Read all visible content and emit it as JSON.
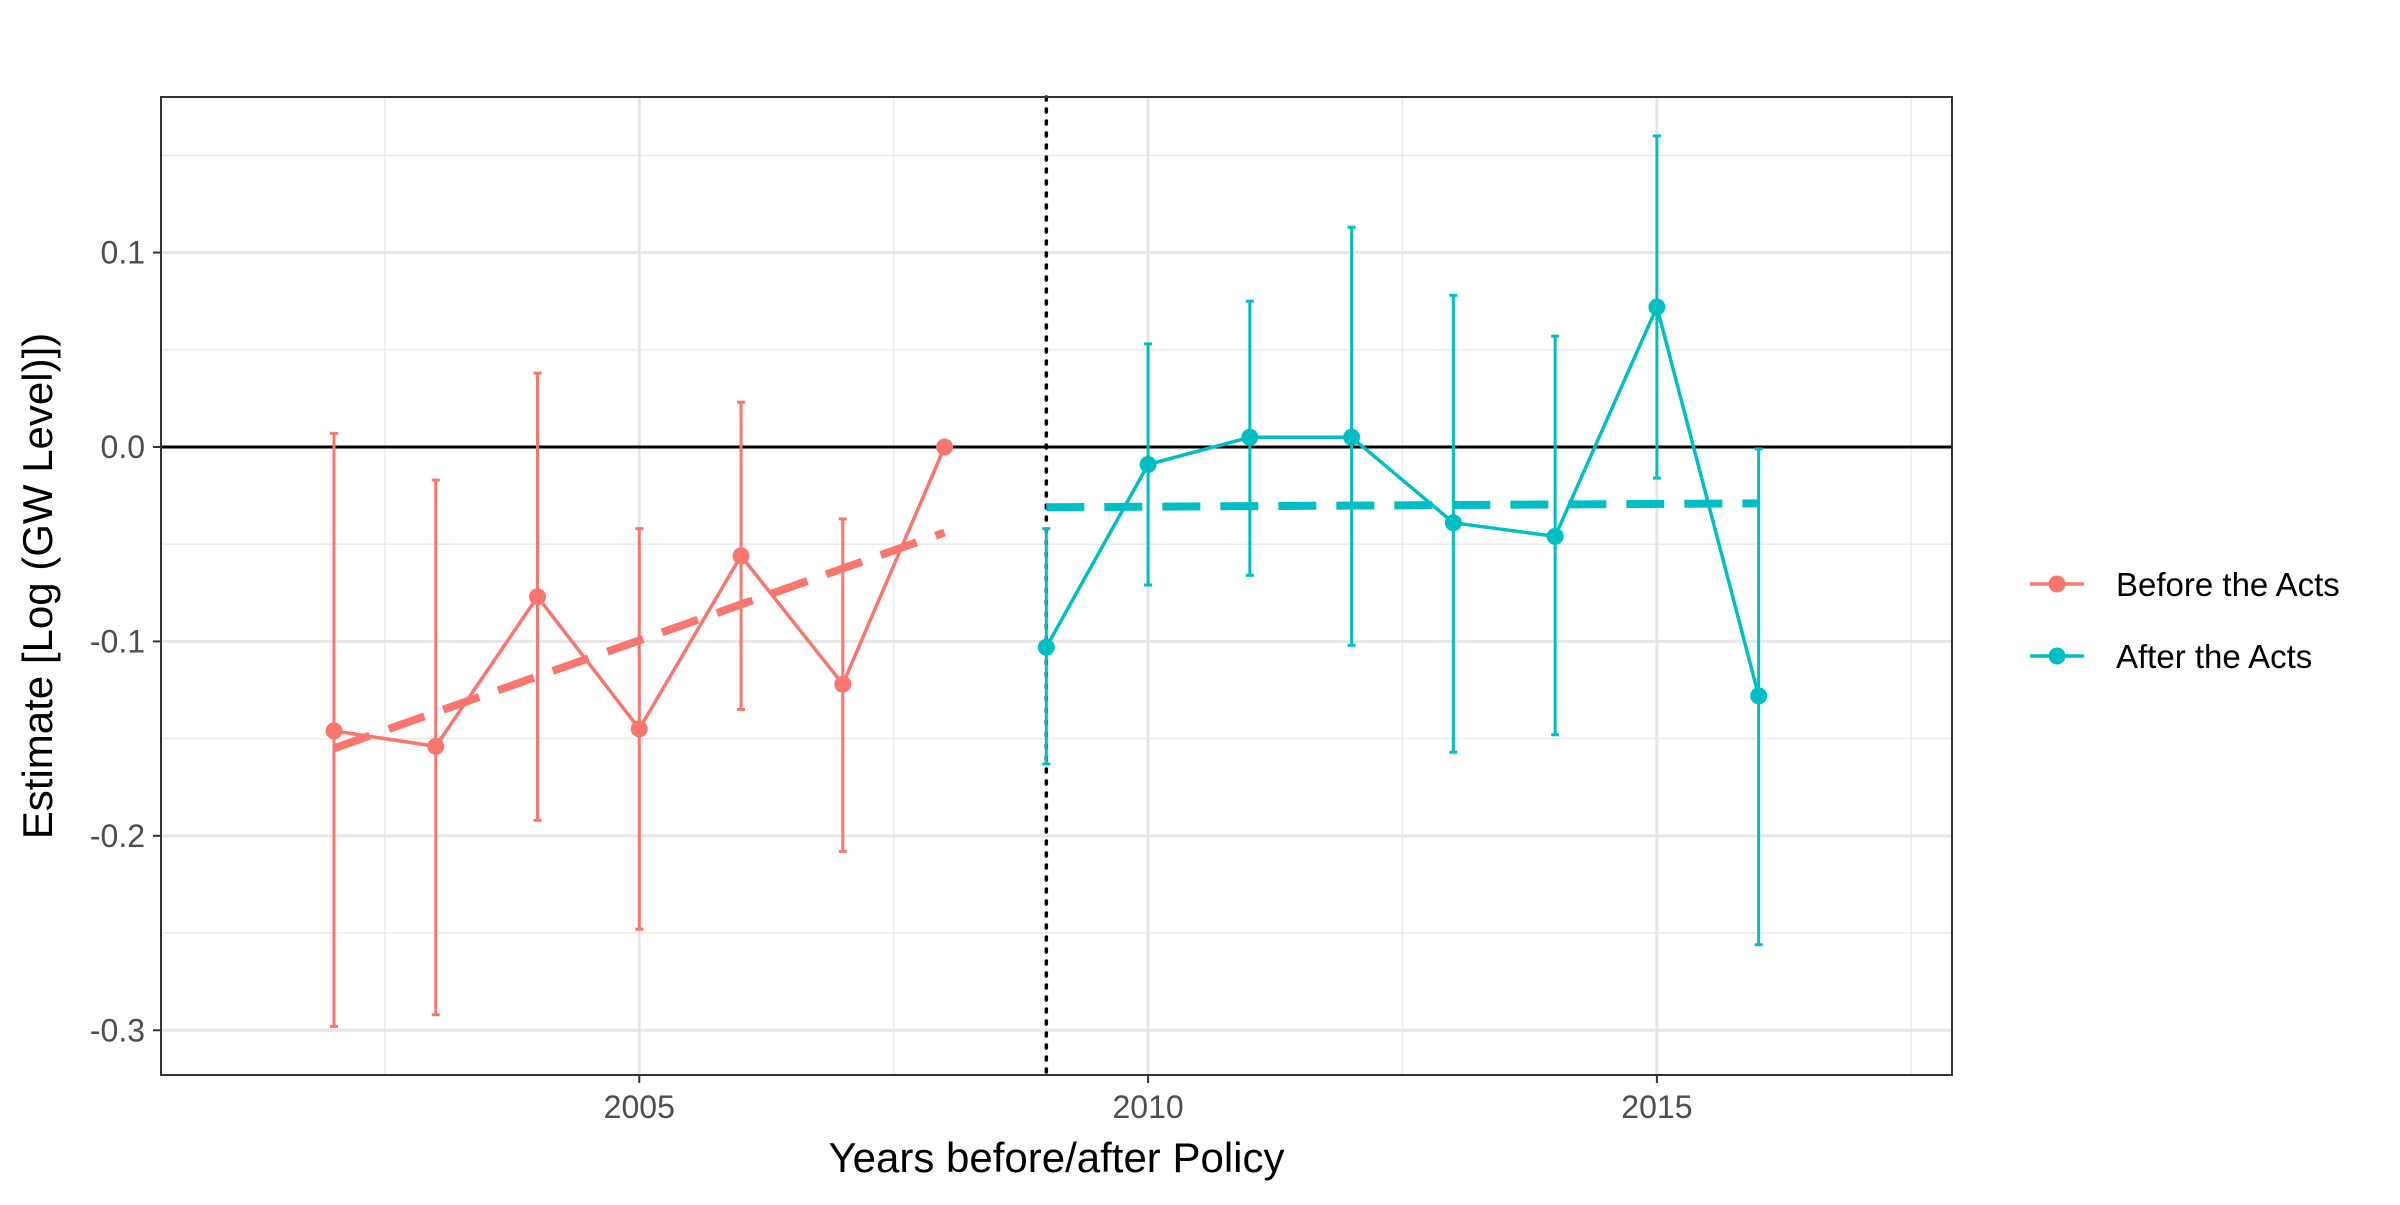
{
  "chart_data": {
    "type": "line",
    "title": "",
    "xlabel": "Years before/after Policy",
    "ylabel": "Estimate [Log (GW Level)])",
    "xlim": [
      2000.3,
      2017.9
    ],
    "ylim": [
      -0.323,
      0.18
    ],
    "x_ticks": [
      2005,
      2010,
      2015
    ],
    "x_tick_labels": [
      "2005",
      "2010",
      "2015"
    ],
    "y_ticks": [
      0.1,
      0.0,
      -0.1,
      -0.2,
      -0.3
    ],
    "y_tick_labels": [
      "0.1",
      "0.0",
      "-0.1",
      "-0.2",
      "-0.3"
    ],
    "x_minor_gridlines": [
      2002.5,
      2007.5,
      2012.5,
      2017.5
    ],
    "y_minor_gridlines": [
      0.15,
      0.05,
      -0.05,
      -0.15,
      -0.25
    ],
    "grid": true,
    "legend_position": "right",
    "reference_lines": {
      "horizontal_zero": 0.0,
      "policy_year_dotted": 2009
    },
    "series": [
      {
        "name": "Before the Acts",
        "color": "#F8766D",
        "points": [
          {
            "x": 2002,
            "y": -0.146,
            "lo": -0.298,
            "hi": 0.007
          },
          {
            "x": 2003,
            "y": -0.154,
            "lo": -0.292,
            "hi": -0.017
          },
          {
            "x": 2004,
            "y": -0.077,
            "lo": -0.192,
            "hi": 0.038
          },
          {
            "x": 2005,
            "y": -0.145,
            "lo": -0.248,
            "hi": -0.042
          },
          {
            "x": 2006,
            "y": -0.056,
            "lo": -0.135,
            "hi": 0.023
          },
          {
            "x": 2007,
            "y": -0.122,
            "lo": -0.208,
            "hi": -0.037
          },
          {
            "x": 2008,
            "y": 0.0
          }
        ],
        "trend": {
          "x0": 2002,
          "y0": -0.155,
          "x1": 2008,
          "y1": -0.044
        }
      },
      {
        "name": "After the Acts",
        "color": "#00BFC4",
        "points": [
          {
            "x": 2009,
            "y": -0.103,
            "lo": -0.163,
            "hi": -0.042
          },
          {
            "x": 2010,
            "y": -0.009,
            "lo": -0.071,
            "hi": 0.053
          },
          {
            "x": 2011,
            "y": 0.005,
            "lo": -0.066,
            "hi": 0.075
          },
          {
            "x": 2012,
            "y": 0.005,
            "lo": -0.102,
            "hi": 0.113
          },
          {
            "x": 2013,
            "y": -0.039,
            "lo": -0.157,
            "hi": 0.078
          },
          {
            "x": 2014,
            "y": -0.046,
            "lo": -0.148,
            "hi": 0.057
          },
          {
            "x": 2015,
            "y": 0.072,
            "lo": -0.016,
            "hi": 0.16
          },
          {
            "x": 2016,
            "y": -0.128,
            "lo": -0.256,
            "hi": -0.001
          }
        ],
        "trend": {
          "x0": 2009,
          "y0": -0.031,
          "x1": 2016,
          "y1": -0.029
        }
      }
    ]
  }
}
